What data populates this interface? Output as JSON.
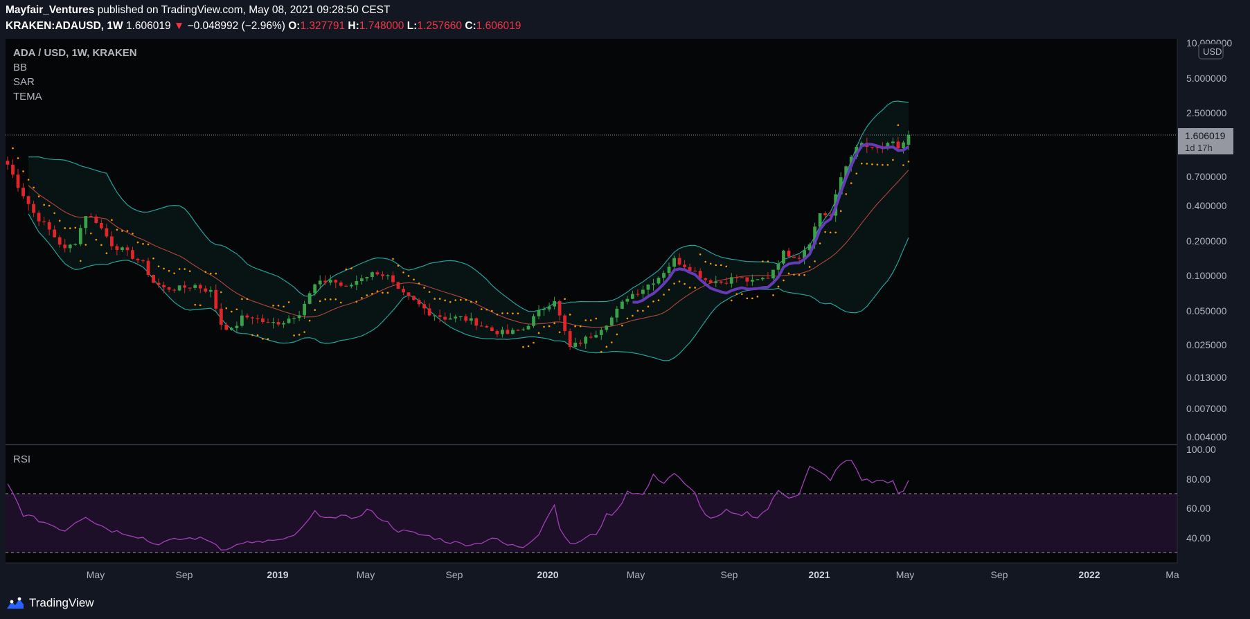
{
  "header": {
    "publisher": "Mayfair_Ventures",
    "published_text": "published on TradingView.com, May 08, 2021 09:28:50 CEST",
    "symbol": "KRAKEN:ADAUSD, 1W",
    "last": "1.606019",
    "change": "−0.048992 (−2.96%)",
    "o_label": "O:",
    "o_value": "1.327791",
    "h_label": "H:",
    "h_value": "1.748000",
    "l_label": "L:",
    "l_value": "1.257660",
    "c_label": "C:",
    "c_value": "1.606019"
  },
  "legend": {
    "title": "ADA / USD, 1W, KRAKEN",
    "indicators": [
      "BB",
      "SAR",
      "TEMA"
    ]
  },
  "price_axis": {
    "unit_badge": "USD",
    "ticks": [
      "10.000000",
      "5.000000",
      "2.500000",
      "0.700000",
      "0.400000",
      "0.200000",
      "0.100000",
      "0.050000",
      "0.025000",
      "0.013000",
      "0.007000",
      "0.004000"
    ],
    "last_price_label": "1.606019",
    "countdown_label": "1d 17h"
  },
  "rsi": {
    "label": "RSI",
    "ticks": [
      "100.00",
      "80.00",
      "60.00",
      "40.00"
    ],
    "upper_band": 70,
    "lower_band": 30
  },
  "time_axis": {
    "labels": [
      "May",
      "Sep",
      "2019",
      "May",
      "Sep",
      "2020",
      "May",
      "Sep",
      "2021",
      "May",
      "Sep",
      "2022",
      "Ma"
    ],
    "bold": [
      false,
      false,
      true,
      false,
      false,
      true,
      false,
      false,
      true,
      false,
      false,
      true,
      false
    ]
  },
  "footer": {
    "brand": "TradingView"
  },
  "colors": {
    "background": "#131722",
    "pane": "#050608",
    "up": "#26a69a",
    "up_candle": "#3aa14a",
    "down_candle": "#e0262a",
    "bb_band": "#22a39a",
    "bb_basis": "#b2463c",
    "sar": "#ff9800",
    "tema": "#673ab7",
    "rsi": "#a23fb8",
    "rsi_fill": "#3a1a4a"
  },
  "series": {
    "close_anchors": [
      [
        0,
        0.9
      ],
      [
        2,
        0.6
      ],
      [
        5,
        0.35
      ],
      [
        8,
        0.25
      ],
      [
        11,
        0.17
      ],
      [
        13,
        0.2
      ],
      [
        15,
        0.34
      ],
      [
        17,
        0.3
      ],
      [
        20,
        0.19
      ],
      [
        23,
        0.16
      ],
      [
        26,
        0.13
      ],
      [
        28,
        0.09
      ],
      [
        30,
        0.08
      ],
      [
        33,
        0.08
      ],
      [
        36,
        0.085
      ],
      [
        39,
        0.075
      ],
      [
        41,
        0.04
      ],
      [
        43,
        0.035
      ],
      [
        45,
        0.045
      ],
      [
        47,
        0.046
      ],
      [
        50,
        0.04
      ],
      [
        53,
        0.042
      ],
      [
        56,
        0.05
      ],
      [
        59,
        0.085
      ],
      [
        62,
        0.095
      ],
      [
        65,
        0.08
      ],
      [
        68,
        0.1
      ],
      [
        71,
        0.11
      ],
      [
        73,
        0.1
      ],
      [
        75,
        0.075
      ],
      [
        78,
        0.062
      ],
      [
        81,
        0.05
      ],
      [
        84,
        0.045
      ],
      [
        87,
        0.045
      ],
      [
        90,
        0.041
      ],
      [
        93,
        0.035
      ],
      [
        96,
        0.033
      ],
      [
        99,
        0.036
      ],
      [
        102,
        0.05
      ],
      [
        105,
        0.065
      ],
      [
        106,
        0.046
      ],
      [
        108,
        0.025
      ],
      [
        110,
        0.028
      ],
      [
        113,
        0.034
      ],
      [
        116,
        0.045
      ],
      [
        119,
        0.068
      ],
      [
        122,
        0.08
      ],
      [
        125,
        0.1
      ],
      [
        128,
        0.14
      ],
      [
        131,
        0.12
      ],
      [
        134,
        0.095
      ],
      [
        137,
        0.09
      ],
      [
        140,
        0.1
      ],
      [
        143,
        0.09
      ],
      [
        146,
        0.1
      ],
      [
        149,
        0.16
      ],
      [
        152,
        0.15
      ],
      [
        154,
        0.2
      ],
      [
        156,
        0.35
      ],
      [
        158,
        0.33
      ],
      [
        160,
        0.7
      ],
      [
        162,
        1.1
      ],
      [
        164,
        1.35
      ],
      [
        166,
        1.2
      ],
      [
        168,
        1.25
      ],
      [
        170,
        1.35
      ],
      [
        171,
        1.25
      ],
      [
        172,
        1.39
      ],
      [
        173,
        1.606
      ]
    ],
    "rsi_anchors": [
      [
        0,
        76
      ],
      [
        1,
        70
      ],
      [
        3,
        56
      ],
      [
        6,
        52
      ],
      [
        9,
        48
      ],
      [
        11,
        45
      ],
      [
        13,
        51
      ],
      [
        15,
        55
      ],
      [
        17,
        50
      ],
      [
        20,
        45
      ],
      [
        23,
        43
      ],
      [
        26,
        40
      ],
      [
        28,
        36
      ],
      [
        30,
        37
      ],
      [
        33,
        39
      ],
      [
        36,
        40
      ],
      [
        39,
        38
      ],
      [
        41,
        33
      ],
      [
        43,
        33
      ],
      [
        45,
        37
      ],
      [
        47,
        36
      ],
      [
        50,
        38
      ],
      [
        53,
        38
      ],
      [
        56,
        44
      ],
      [
        59,
        57
      ],
      [
        61,
        55
      ],
      [
        63,
        52
      ],
      [
        65,
        56
      ],
      [
        67,
        53
      ],
      [
        69,
        59
      ],
      [
        71,
        55
      ],
      [
        73,
        50
      ],
      [
        75,
        45
      ],
      [
        78,
        43
      ],
      [
        81,
        41
      ],
      [
        84,
        38
      ],
      [
        87,
        36
      ],
      [
        90,
        36
      ],
      [
        93,
        40
      ],
      [
        96,
        35
      ],
      [
        99,
        34
      ],
      [
        102,
        43
      ],
      [
        104,
        57
      ],
      [
        105,
        62
      ],
      [
        106,
        48
      ],
      [
        108,
        35
      ],
      [
        110,
        38
      ],
      [
        113,
        43
      ],
      [
        115,
        55
      ],
      [
        117,
        58
      ],
      [
        119,
        72
      ],
      [
        122,
        69
      ],
      [
        124,
        82
      ],
      [
        126,
        78
      ],
      [
        128,
        84
      ],
      [
        130,
        76
      ],
      [
        132,
        70
      ],
      [
        134,
        55
      ],
      [
        136,
        53
      ],
      [
        138,
        58
      ],
      [
        140,
        55
      ],
      [
        142,
        57
      ],
      [
        144,
        54
      ],
      [
        146,
        60
      ],
      [
        148,
        72
      ],
      [
        150,
        68
      ],
      [
        152,
        70
      ],
      [
        154,
        88
      ],
      [
        156,
        84
      ],
      [
        158,
        80
      ],
      [
        160,
        90
      ],
      [
        162,
        93
      ],
      [
        164,
        80
      ],
      [
        166,
        78
      ],
      [
        168,
        79
      ],
      [
        170,
        78
      ],
      [
        171,
        69
      ],
      [
        172,
        72
      ],
      [
        173,
        78
      ]
    ]
  }
}
